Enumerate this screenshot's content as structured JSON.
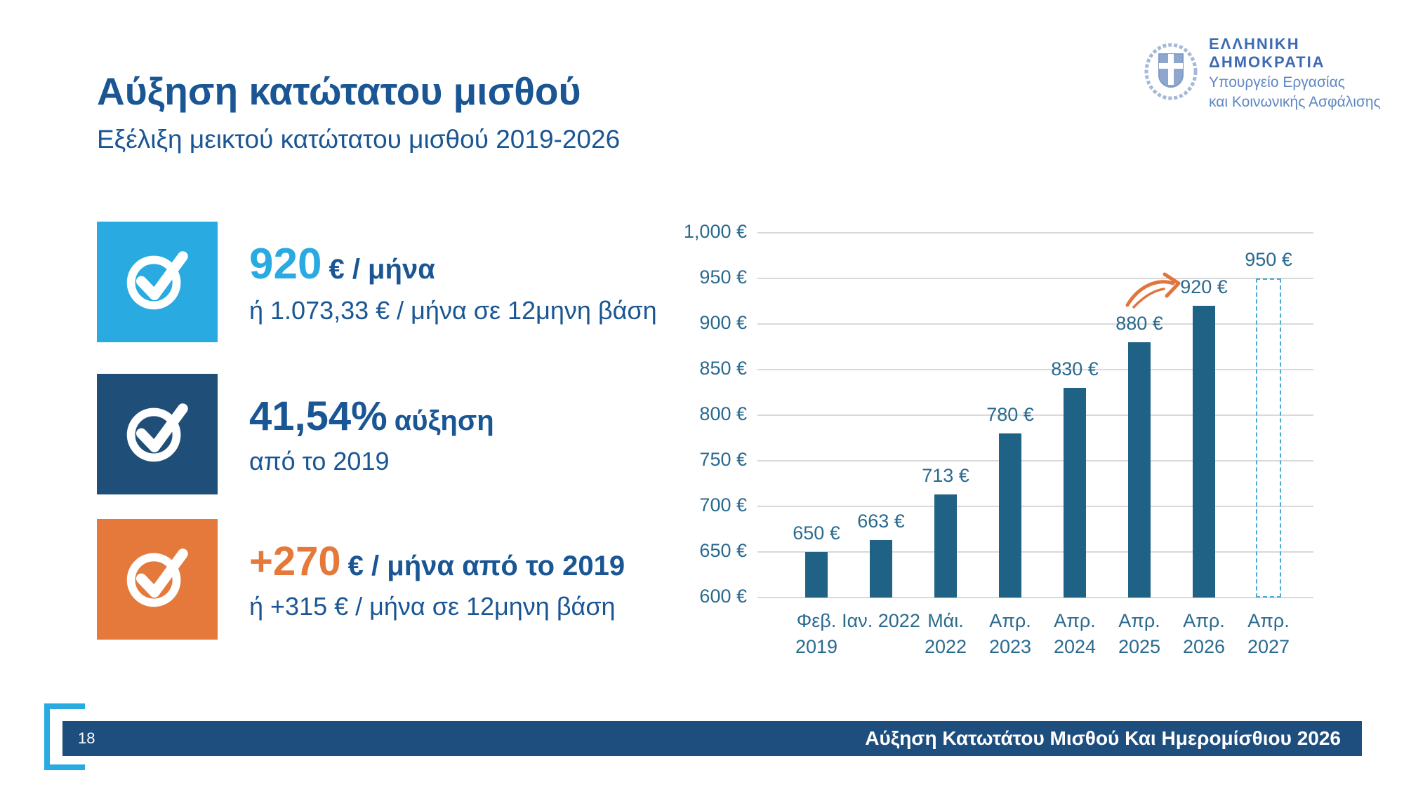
{
  "page": {
    "title": "Αύξηση κατώτατου μισθού",
    "subtitle": "Εξέλιξη μεικτού κατώτατου μισθού 2019-2026"
  },
  "logo": {
    "line1": "ΕΛΛΗΝΙΚΗ ΔΗΜΟΚΡΑΤΙΑ",
    "line2": "Υπουργείο Εργασίας",
    "line3": "και Κοινωνικής Ασφάλισης"
  },
  "highlights": [
    {
      "accent": "#29ABE2",
      "value": "920",
      "value_suffix": "€ / μήνα",
      "subtext": "ή 1.073,33 € / μήνα σε 12μηνη βάση"
    },
    {
      "accent": "#1F4E79",
      "value": "41,54%",
      "value_suffix": "αύξηση",
      "subtext": "από το 2019"
    },
    {
      "accent": "#E5793B",
      "value": "+270",
      "value_suffix": "€ / μήνα από το 2019",
      "subtext": "ή +315 € / μήνα σε 12μηνη βάση"
    }
  ],
  "chart_data": {
    "type": "bar",
    "title": "",
    "categories": [
      "Φεβ. 2019",
      "Ιαν. 2022",
      "Μάι. 2022",
      "Απρ. 2023",
      "Απρ. 2024",
      "Απρ. 2025",
      "Απρ. 2026",
      "Απρ. 2027"
    ],
    "category_lines": [
      [
        "Φεβ.",
        "2019"
      ],
      [
        "Ιαν. 2022",
        ""
      ],
      [
        "Μάι.",
        "2022"
      ],
      [
        "Απρ.",
        "2023"
      ],
      [
        "Απρ.",
        "2024"
      ],
      [
        "Απρ.",
        "2025"
      ],
      [
        "Απρ.",
        "2026"
      ],
      [
        "Απρ.",
        "2027"
      ]
    ],
    "values": [
      650,
      663,
      713,
      780,
      830,
      880,
      920,
      950
    ],
    "bar_labels": [
      "650 €",
      "663 €",
      "713 €",
      "780 €",
      "830 €",
      "880 €",
      "920 €",
      "950 €"
    ],
    "dashed_index": 7,
    "ylim": [
      600,
      1000
    ],
    "ytick_step": 50,
    "ytick_labels": [
      "600 €",
      "650 €",
      "700 €",
      "750 €",
      "800 €",
      "850 €",
      "900 €",
      "950 €",
      "1,000 €"
    ],
    "grid": true,
    "legend": false,
    "bar_color": "#1F6286",
    "projected_bar_outline": "#4AACD6",
    "label_color": "#2A6A8F",
    "grid_color": "#D9D9D9",
    "annotation": {
      "type": "curved-arrow",
      "color": "#E2743C",
      "points_to": "920 €"
    }
  },
  "footer": {
    "page_number": "18",
    "text": "Αύξηση Κατωτάτου Μισθού Και Ημερομίσθιου 2026"
  },
  "colors": {
    "heading_blue": "#1A5694",
    "light_blue": "#29ABE2",
    "dark_navy": "#1F4E79",
    "orange": "#E5793B",
    "footer_navy": "#1D4E7E"
  }
}
